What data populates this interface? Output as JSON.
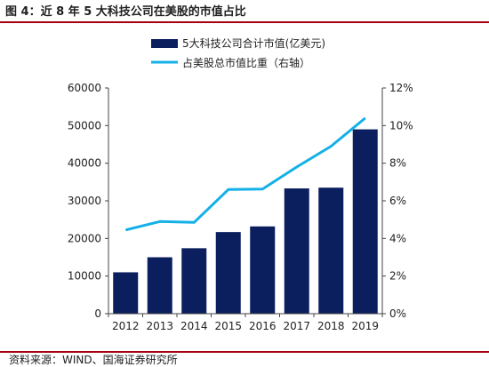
{
  "figure": {
    "title": "图 4：近 8 年 5 大科技公司在美股的市值占比",
    "source": "资料来源：WIND、国海证券研究所"
  },
  "chart_data": {
    "type": "bar",
    "categories": [
      "2012",
      "2013",
      "2014",
      "2015",
      "2016",
      "2017",
      "2018",
      "2019"
    ],
    "series": [
      {
        "name": "5大科技公司合计市值(亿美元)",
        "type": "bar",
        "axis": "left",
        "color": "#0b1f5e",
        "values": [
          11000,
          15000,
          17400,
          21700,
          23200,
          33300,
          33500,
          49000
        ]
      },
      {
        "name": "占美股总市值比重（右轴）",
        "type": "line",
        "axis": "right",
        "color": "#14b0e8",
        "values": [
          4.45,
          4.9,
          4.85,
          6.6,
          6.63,
          7.8,
          8.9,
          10.4
        ]
      }
    ],
    "y_left": {
      "min": 0,
      "max": 60000,
      "ticks": [
        "0",
        "10000",
        "20000",
        "30000",
        "40000",
        "50000",
        "60000"
      ]
    },
    "y_right": {
      "min": 0,
      "max": 12,
      "ticks": [
        "0%",
        "2%",
        "4%",
        "6%",
        "8%",
        "10%",
        "12%"
      ]
    },
    "legend_position": "top-center",
    "grid": false
  }
}
